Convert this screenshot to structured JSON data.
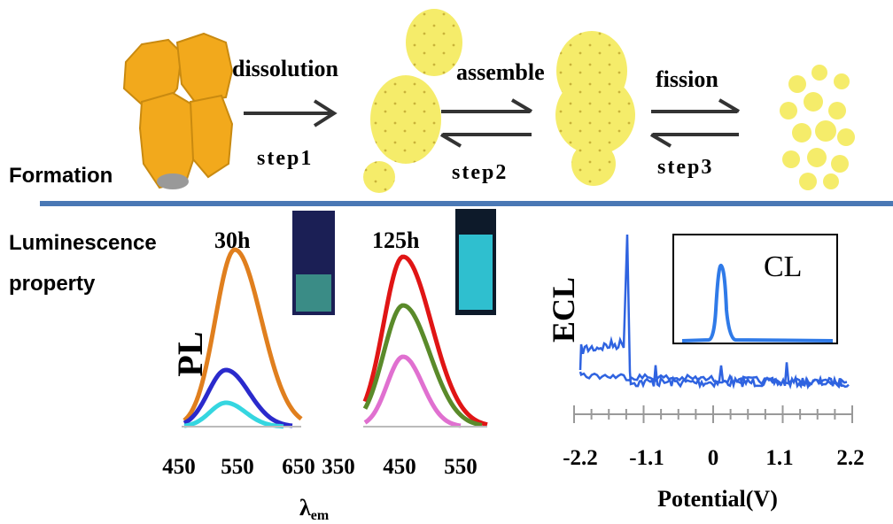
{
  "header": {
    "formation": "Formation"
  },
  "steps": [
    {
      "label": "dissolution",
      "step": "step1"
    },
    {
      "label": "assemble",
      "step": "step2"
    },
    {
      "label": "fission",
      "step": "step3"
    }
  ],
  "luminescence": {
    "title_lines": [
      "Luminescence",
      "property"
    ]
  },
  "pl": {
    "y_label": "PL",
    "x_label": {
      "symbol": "λ",
      "subscript": "em"
    },
    "panels": [
      {
        "time": "30h",
        "xticks": [
          "450",
          "550",
          "650"
        ]
      },
      {
        "time": "125h",
        "xticks": [
          "350",
          "450",
          "550"
        ]
      }
    ]
  },
  "ecl": {
    "y_label": "ECL",
    "inset_label": "CL",
    "x_label": "Potential(V)",
    "xticks": [
      "-2.2",
      "-1.1",
      "0",
      "1.1",
      "2.2"
    ]
  }
}
